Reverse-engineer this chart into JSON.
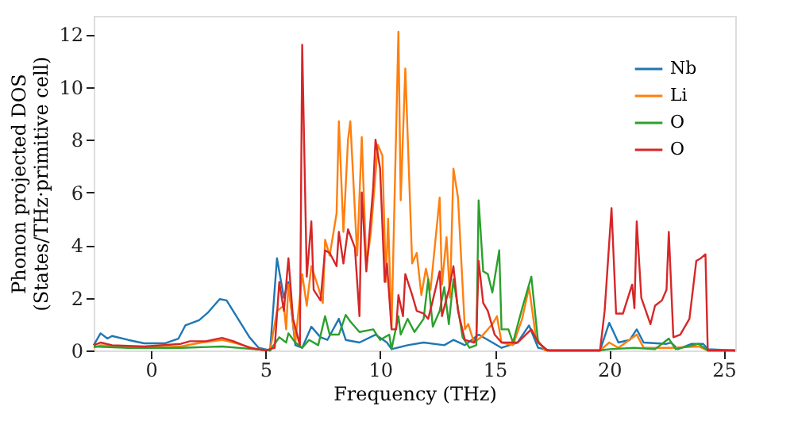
{
  "chart_data": {
    "type": "line",
    "xlabel": "Frequency (THz)",
    "ylabel": "Phonon projected DOS\n(States/THz·primitive cell)",
    "xlim": [
      -2.5,
      25.5
    ],
    "ylim": [
      0,
      12.7
    ],
    "xticks": [
      0,
      5,
      10,
      15,
      20,
      25
    ],
    "yticks": [
      0,
      2,
      4,
      6,
      8,
      10,
      12
    ],
    "grid": false,
    "legend": "top right",
    "line_style": "solid",
    "marker": "none",
    "series": [
      {
        "name": "Nb",
        "color": "#1f77b4",
        "x": [
          -2.5,
          -2.2,
          -1.9,
          -1.7,
          -1.0,
          -0.3,
          0.6,
          1.2,
          1.5,
          2.1,
          2.5,
          3.0,
          3.3,
          3.8,
          4.3,
          4.7,
          5.2,
          5.5,
          5.8,
          6.0,
          6.3,
          6.6,
          7.0,
          7.4,
          7.7,
          8.2,
          8.5,
          9.1,
          9.8,
          10.3,
          10.5,
          11.2,
          11.9,
          12.8,
          13.2,
          13.7,
          14.3,
          14.9,
          15.3,
          16.0,
          16.5,
          16.9,
          17.4,
          19.6,
          20.0,
          20.4,
          20.9,
          21.2,
          21.5,
          22.5,
          22.7,
          23.0,
          23.6,
          24.1,
          24.3,
          25.5
        ],
        "values": [
          0.2,
          0.65,
          0.45,
          0.55,
          0.4,
          0.27,
          0.27,
          0.45,
          0.95,
          1.15,
          1.45,
          1.95,
          1.9,
          1.2,
          0.5,
          0.1,
          0,
          3.5,
          2.0,
          2.6,
          0.2,
          0.1,
          0.9,
          0.5,
          0.4,
          1.2,
          0.4,
          0.3,
          0.6,
          0.3,
          0.05,
          0.2,
          0.3,
          0.2,
          0.4,
          0.2,
          0.6,
          0.3,
          0.1,
          0.3,
          0.95,
          0.1,
          0,
          0,
          1.05,
          0.3,
          0.4,
          0.8,
          0.3,
          0.25,
          0.3,
          0.05,
          0.25,
          0.25,
          0.05,
          0
        ]
      },
      {
        "name": "Li",
        "color": "#ff7f0e",
        "x": [
          -2.5,
          -2.2,
          -0.3,
          1.3,
          2.2,
          3.1,
          3.8,
          4.6,
          5.2,
          5.5,
          5.8,
          5.9,
          6.0,
          6.3,
          6.6,
          6.8,
          7.0,
          7.3,
          7.5,
          7.6,
          7.8,
          8.1,
          8.2,
          8.4,
          8.6,
          8.7,
          9.0,
          9.2,
          9.4,
          9.6,
          9.9,
          10.1,
          10.25,
          10.35,
          10.5,
          10.8,
          10.9,
          11.1,
          11.4,
          11.6,
          11.8,
          12.0,
          12.2,
          12.6,
          12.7,
          12.9,
          13.05,
          13.2,
          13.4,
          13.7,
          13.85,
          14.1,
          14.4,
          14.9,
          15.1,
          15.3,
          15.8,
          16.2,
          16.5,
          16.8,
          17.2,
          19.6,
          20.0,
          20.4,
          21.2,
          21.5,
          22.7,
          23.9,
          24.3,
          25.5
        ],
        "values": [
          0.1,
          0.2,
          0.1,
          0.15,
          0.3,
          0.4,
          0.25,
          0.05,
          0,
          1.5,
          1.7,
          0.8,
          2.5,
          0.3,
          2.9,
          1.7,
          3.2,
          2.4,
          1.8,
          4.2,
          3.6,
          5.2,
          8.7,
          4.5,
          8.0,
          8.7,
          3.6,
          8.1,
          3.2,
          4.5,
          7.8,
          7.4,
          2.6,
          5.0,
          0.8,
          12.1,
          5.7,
          10.7,
          3.3,
          3.7,
          2.1,
          3.1,
          2.3,
          5.8,
          2.5,
          4.3,
          2.0,
          6.9,
          5.8,
          0.8,
          1.0,
          0.3,
          0.5,
          1.0,
          1.3,
          0.3,
          0.2,
          1.2,
          2.4,
          0.5,
          0,
          0,
          0.3,
          0.1,
          0.6,
          0.1,
          0.1,
          0.15,
          0,
          0
        ]
      },
      {
        "name": "O",
        "color": "#2ca02c",
        "x": [
          -2.5,
          -1.0,
          1.3,
          3.1,
          4.5,
          5.2,
          5.6,
          5.9,
          6.0,
          6.3,
          6.6,
          6.9,
          7.3,
          7.6,
          7.8,
          8.2,
          8.5,
          8.7,
          9.1,
          9.7,
          10.0,
          10.4,
          10.5,
          10.8,
          10.9,
          11.2,
          11.5,
          11.9,
          12.1,
          12.3,
          12.6,
          12.8,
          13.0,
          13.2,
          13.6,
          13.9,
          14.2,
          14.3,
          14.5,
          14.7,
          14.9,
          15.2,
          15.3,
          15.6,
          15.8,
          16.2,
          16.6,
          16.9,
          17.3,
          19.6,
          20.0,
          21.1,
          22.0,
          22.6,
          22.9,
          23.9,
          24.3,
          25.5
        ],
        "values": [
          0.15,
          0.1,
          0.1,
          0.15,
          0.05,
          0,
          0.5,
          0.3,
          0.65,
          0.3,
          0.1,
          0.4,
          0.2,
          1.3,
          0.6,
          0.6,
          1.35,
          1.1,
          0.7,
          0.8,
          0.4,
          0.6,
          0.05,
          1.3,
          0.6,
          1.2,
          0.7,
          1.2,
          2.7,
          0.9,
          1.5,
          2.4,
          1.0,
          2.7,
          0.5,
          0.1,
          0.2,
          5.7,
          3.0,
          2.9,
          2.2,
          3.8,
          0.8,
          0.8,
          0.3,
          1.6,
          2.8,
          0.3,
          0,
          0,
          0.05,
          0.1,
          0.05,
          0.45,
          0.05,
          0.25,
          0,
          0
        ]
      },
      {
        "name": "O",
        "color": "#d62728",
        "x": [
          -2.5,
          -2.2,
          -1.7,
          -0.3,
          1.3,
          1.7,
          2.4,
          3.1,
          3.6,
          4.3,
          5.0,
          5.4,
          5.6,
          5.8,
          6.0,
          6.2,
          6.5,
          6.6,
          6.8,
          7.0,
          7.1,
          7.4,
          7.6,
          7.8,
          8.1,
          8.2,
          8.4,
          8.6,
          8.9,
          9.1,
          9.2,
          9.4,
          9.7,
          9.8,
          10.0,
          10.2,
          10.3,
          10.5,
          10.7,
          10.8,
          11.0,
          11.1,
          11.4,
          11.6,
          11.9,
          12.1,
          12.3,
          12.6,
          12.7,
          13.0,
          13.2,
          13.4,
          13.7,
          14.1,
          14.2,
          14.3,
          14.5,
          14.7,
          15.0,
          15.3,
          16.0,
          16.6,
          16.9,
          17.3,
          19.6,
          19.8,
          20.1,
          20.3,
          20.6,
          21.0,
          21.1,
          21.2,
          21.4,
          21.8,
          22.0,
          22.3,
          22.5,
          22.6,
          22.8,
          23.1,
          23.5,
          23.8,
          24.0,
          24.2,
          24.3,
          25.5
        ],
        "values": [
          0.2,
          0.3,
          0.2,
          0.15,
          0.25,
          0.35,
          0.35,
          0.48,
          0.35,
          0.1,
          0,
          0.1,
          2.6,
          1.5,
          3.5,
          1.2,
          0.2,
          11.6,
          2.8,
          4.9,
          2.3,
          1.9,
          3.8,
          3.7,
          3.2,
          4.5,
          3.3,
          4.6,
          3.9,
          1.3,
          6.0,
          3.0,
          6.2,
          8.0,
          6.9,
          2.6,
          3.3,
          0.8,
          0.8,
          2.1,
          1.3,
          2.9,
          2.1,
          1.5,
          1.4,
          1.2,
          1.9,
          3.0,
          1.3,
          2.3,
          3.2,
          1.5,
          0.4,
          0.3,
          0.5,
          3.4,
          1.8,
          1.5,
          0.6,
          0.3,
          0.3,
          0.8,
          0.3,
          0,
          0,
          1.5,
          5.4,
          1.4,
          1.4,
          2.5,
          1.6,
          4.9,
          2.0,
          1.0,
          1.7,
          1.9,
          2.3,
          4.5,
          0.5,
          0.6,
          1.2,
          3.4,
          3.5,
          3.65,
          0,
          0
        ]
      }
    ]
  }
}
